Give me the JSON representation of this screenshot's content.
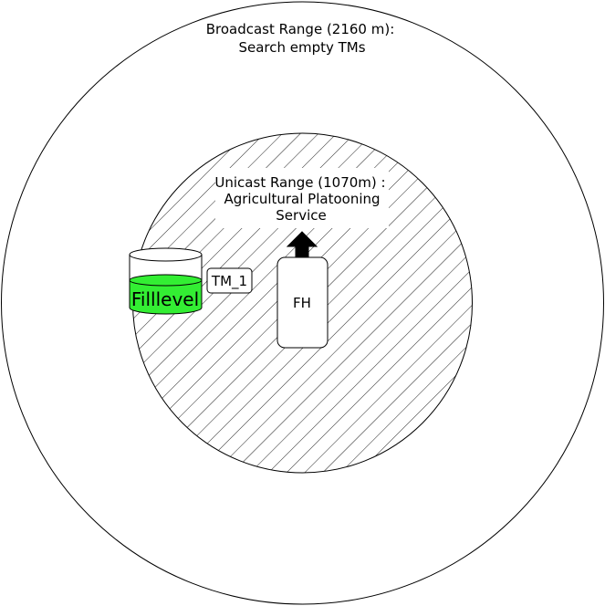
{
  "broadcast": {
    "label_line1": "Broadcast Range (2160 m):",
    "label_line2": "Search empty TMs"
  },
  "unicast": {
    "label_line1": "Unicast Range (1070m) :",
    "label_line2": "Agricultural Platooning",
    "label_line3": "Service"
  },
  "tank": {
    "label": "Filllevel",
    "fill_color": "#33ee33"
  },
  "tm_label": "TM_1",
  "fh_label": "FH",
  "direction_arrow": "up-arrow"
}
